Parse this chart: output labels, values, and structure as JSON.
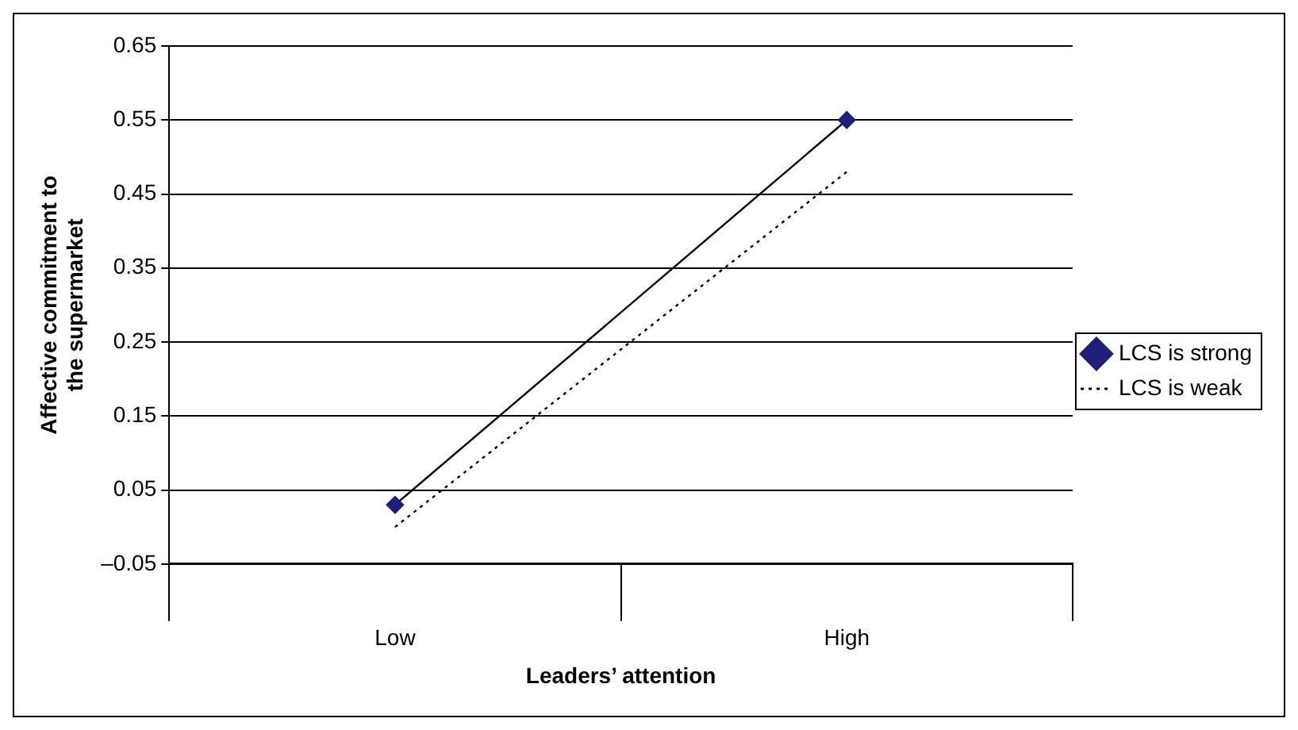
{
  "chart_data": {
    "type": "line",
    "xlabel": "Leaders’ attention",
    "ylabel": "Affective commitment to the supermarket",
    "categories": [
      "Low",
      "High"
    ],
    "series": [
      {
        "name": "LCS is strong",
        "color": "#1f1f7a",
        "values": [
          0.03,
          0.55
        ],
        "marker": "diamond",
        "line_style": "solid"
      },
      {
        "name": "LCS is weak",
        "color": "#000000",
        "values": [
          0.0,
          0.48
        ],
        "marker": "none",
        "line_style": "dotted"
      }
    ],
    "ylim": [
      -0.05,
      0.65
    ],
    "yticks": [
      {
        "value": -0.05,
        "label": "–0.05"
      },
      0.05,
      0.15,
      0.25,
      0.35,
      0.45,
      0.55,
      0.65
    ],
    "grid": "y",
    "legend": "right"
  }
}
